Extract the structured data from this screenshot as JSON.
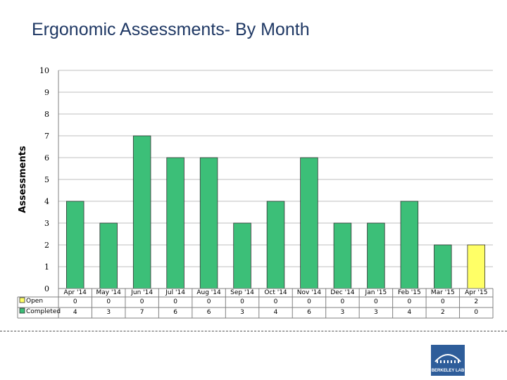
{
  "title": "Ergonomic Assessments- By Month",
  "logo": {
    "text": "BERKELEY LAB"
  },
  "colors": {
    "completed": "#3cbf78",
    "open": "#ffff66",
    "grid": "#bfbfbf",
    "axis": "#808080"
  },
  "chart_data": {
    "type": "bar",
    "stacked": true,
    "ylabel": "Assessments",
    "xlabel": "",
    "ylim": [
      0,
      10
    ],
    "yticks": [
      0,
      1,
      2,
      3,
      4,
      5,
      6,
      7,
      8,
      9,
      10
    ],
    "grid": true,
    "legend": "data-table",
    "categories": [
      "Apr '14",
      "May '14",
      "Jun '14",
      "Jul '14",
      "Aug '14",
      "Sep '14",
      "Oct '14",
      "Nov '14",
      "Dec '14",
      "Jan '15",
      "Feb '15",
      "Mar '15",
      "Apr '15"
    ],
    "series": [
      {
        "name": "Completed",
        "color": "#3cbf78",
        "values": [
          4,
          3,
          7,
          6,
          6,
          3,
          4,
          6,
          3,
          3,
          4,
          2,
          0
        ]
      },
      {
        "name": "Open",
        "color": "#ffff66",
        "values": [
          0,
          0,
          0,
          0,
          0,
          0,
          0,
          0,
          0,
          0,
          0,
          0,
          2
        ]
      }
    ]
  }
}
